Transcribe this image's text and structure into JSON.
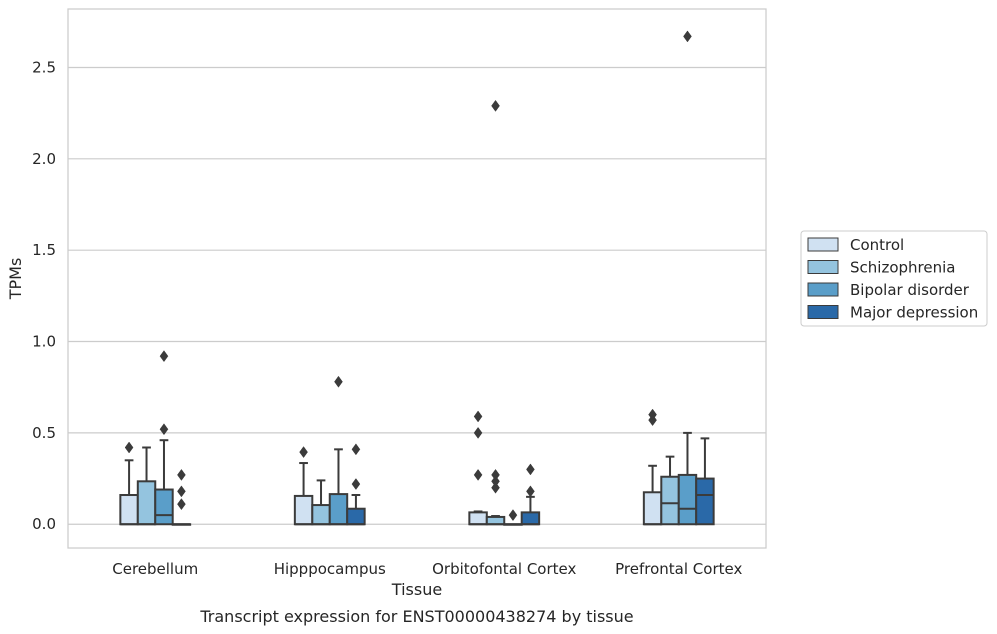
{
  "chart_data": {
    "type": "box",
    "caption": "Transcript expression for ENST00000438274 by tissue",
    "xlabel": "Tissue",
    "ylabel": "TPMs",
    "ylim": [
      -0.13,
      2.82
    ],
    "yticks": [
      "0.0",
      "0.5",
      "1.0",
      "1.5",
      "2.0",
      "2.5"
    ],
    "grid": true,
    "legend_position": "right, outside plot",
    "categories": [
      "Cerebellum",
      "Hipppocampus",
      "Orbitofontal Cortex",
      "Prefrontal Cortex"
    ],
    "series": [
      {
        "name": "Control",
        "color": "#d0e1f2",
        "boxes": [
          {
            "min": 0.0,
            "q1": 0.0,
            "median": 0.0,
            "q3": 0.16,
            "max": 0.35,
            "outliers": [
              0.42
            ]
          },
          {
            "min": 0.0,
            "q1": 0.0,
            "median": 0.0,
            "q3": 0.155,
            "max": 0.335,
            "outliers": [
              0.395
            ]
          },
          {
            "min": 0.0,
            "q1": 0.0,
            "median": 0.0,
            "q3": 0.065,
            "max": 0.07,
            "outliers": [
              0.27,
              0.5,
              0.59
            ]
          },
          {
            "min": 0.0,
            "q1": 0.0,
            "median": 0.0,
            "q3": 0.175,
            "max": 0.32,
            "outliers": [
              0.57,
              0.6
            ]
          }
        ]
      },
      {
        "name": "Schizophrenia",
        "color": "#94c4df",
        "boxes": [
          {
            "min": 0.0,
            "q1": 0.0,
            "median": 0.0,
            "q3": 0.235,
            "max": 0.42,
            "outliers": []
          },
          {
            "min": 0.0,
            "q1": 0.0,
            "median": 0.0,
            "q3": 0.105,
            "max": 0.24,
            "outliers": []
          },
          {
            "min": 0.0,
            "q1": 0.0,
            "median": 0.0,
            "q3": 0.04,
            "max": 0.045,
            "outliers": [
              0.2,
              0.235,
              0.27,
              2.29
            ]
          },
          {
            "min": 0.0,
            "q1": 0.0,
            "median": 0.115,
            "q3": 0.26,
            "max": 0.37,
            "outliers": []
          }
        ]
      },
      {
        "name": "Bipolar disorder",
        "color": "#5a9ec9",
        "boxes": [
          {
            "min": 0.0,
            "q1": 0.0,
            "median": 0.05,
            "q3": 0.19,
            "max": 0.46,
            "outliers": [
              0.52,
              0.92
            ]
          },
          {
            "min": 0.0,
            "q1": 0.0,
            "median": 0.0,
            "q3": 0.165,
            "max": 0.41,
            "outliers": [
              0.78
            ]
          },
          {
            "min": 0.0,
            "q1": 0.0,
            "median": 0.0,
            "q3": 0.0,
            "max": 0.0,
            "outliers": [
              0.05
            ]
          },
          {
            "min": 0.0,
            "q1": 0.0,
            "median": 0.085,
            "q3": 0.27,
            "max": 0.5,
            "outliers": [
              2.67
            ]
          }
        ]
      },
      {
        "name": "Major depression",
        "color": "#2a69a8",
        "boxes": [
          {
            "min": 0.0,
            "q1": 0.0,
            "median": 0.0,
            "q3": 0.0,
            "max": 0.0,
            "outliers": [
              0.11,
              0.18,
              0.27
            ]
          },
          {
            "min": 0.0,
            "q1": 0.0,
            "median": 0.0,
            "q3": 0.085,
            "max": 0.16,
            "outliers": [
              0.22,
              0.41
            ]
          },
          {
            "min": 0.0,
            "q1": 0.0,
            "median": 0.0,
            "q3": 0.065,
            "max": 0.15,
            "outliers": [
              0.18,
              0.3
            ]
          },
          {
            "min": 0.0,
            "q1": 0.0,
            "median": 0.16,
            "q3": 0.25,
            "max": 0.47,
            "outliers": []
          }
        ]
      }
    ]
  }
}
